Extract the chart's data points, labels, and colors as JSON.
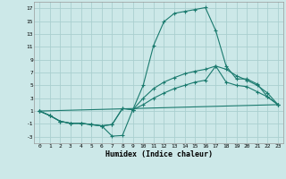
{
  "xlabel": "Humidex (Indice chaleur)",
  "background_color": "#cce8e8",
  "grid_color": "#aacfcf",
  "line_color": "#1a7a6e",
  "ylim": [
    -4,
    18
  ],
  "xlim": [
    -0.5,
    23.5
  ],
  "yticks": [
    -3,
    -1,
    1,
    3,
    5,
    7,
    9,
    11,
    13,
    15,
    17
  ],
  "xticks": [
    0,
    1,
    2,
    3,
    4,
    5,
    6,
    7,
    8,
    9,
    10,
    11,
    12,
    13,
    14,
    15,
    16,
    17,
    18,
    19,
    20,
    21,
    22,
    23
  ],
  "line1_x": [
    0,
    1,
    2,
    3,
    4,
    5,
    6,
    7,
    8,
    9,
    10,
    11,
    12,
    13,
    14,
    15,
    16,
    17,
    18,
    19,
    20,
    21,
    22,
    23
  ],
  "line1_y": [
    1.0,
    0.3,
    -0.6,
    -0.9,
    -0.9,
    -1.1,
    -1.3,
    -2.9,
    -2.8,
    1.2,
    5.0,
    11.2,
    14.9,
    16.2,
    16.5,
    16.8,
    17.1,
    13.5,
    8.0,
    6.0,
    6.0,
    5.2,
    3.2,
    2.0
  ],
  "line2_x": [
    0,
    1,
    2,
    3,
    4,
    5,
    6,
    7,
    8,
    9,
    10,
    11,
    12,
    13,
    14,
    15,
    16,
    17,
    18,
    19,
    20,
    21,
    22,
    23
  ],
  "line2_y": [
    1.0,
    0.3,
    -0.6,
    -0.9,
    -0.9,
    -1.1,
    -1.3,
    -1.1,
    1.4,
    1.2,
    3.0,
    4.5,
    5.5,
    6.2,
    6.8,
    7.2,
    7.5,
    8.0,
    7.5,
    6.5,
    5.8,
    5.0,
    3.8,
    2.0
  ],
  "line3_x": [
    0,
    23
  ],
  "line3_y": [
    1.0,
    2.0
  ],
  "line4_x": [
    0,
    1,
    2,
    3,
    4,
    5,
    6,
    7,
    8,
    9,
    10,
    11,
    12,
    13,
    14,
    15,
    16,
    17,
    18,
    19,
    20,
    21,
    22,
    23
  ],
  "line4_y": [
    1.0,
    0.3,
    -0.6,
    -0.9,
    -0.9,
    -1.1,
    -1.3,
    -1.1,
    1.4,
    1.2,
    2.0,
    3.0,
    3.8,
    4.5,
    5.0,
    5.5,
    5.8,
    8.0,
    5.5,
    5.0,
    4.8,
    4.0,
    3.2,
    2.0
  ]
}
